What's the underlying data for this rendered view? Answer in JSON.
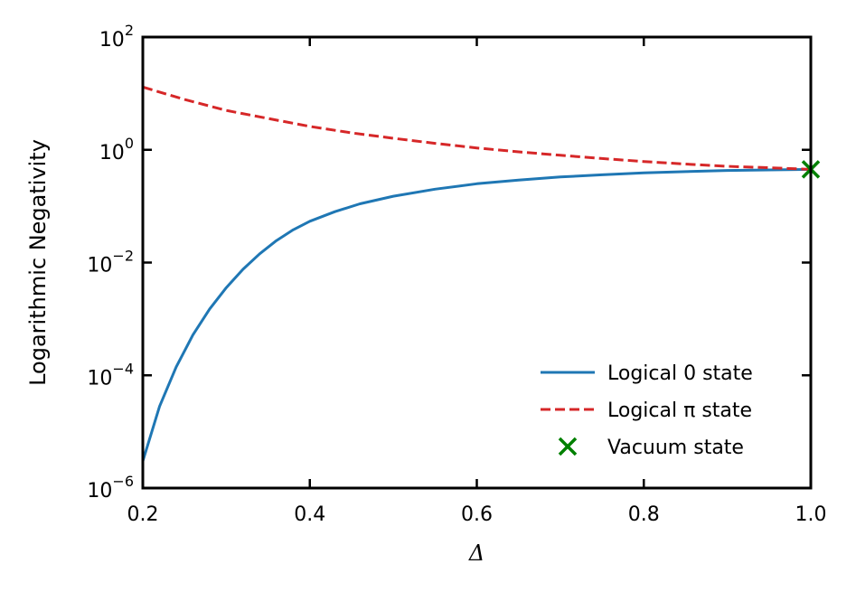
{
  "chart_data": {
    "type": "line",
    "title": "",
    "xlabel": "Δ",
    "ylabel": "Logarithmic Negativity",
    "xlim": [
      0.2,
      1.0
    ],
    "ylim": [
      1e-06,
      100
    ],
    "yscale": "log",
    "grid": false,
    "legend_position": "lower-right",
    "x_ticks": [
      0.2,
      0.4,
      0.6,
      0.8,
      1.0
    ],
    "x_tick_labels": [
      "0.2",
      "0.4",
      "0.6",
      "0.8",
      "1.0"
    ],
    "y_ticks": [
      1e-06,
      0.0001,
      0.01,
      1,
      100
    ],
    "y_tick_labels": [
      {
        "base": "10",
        "exp": "−6"
      },
      {
        "base": "10",
        "exp": "−4"
      },
      {
        "base": "10",
        "exp": "−2"
      },
      {
        "base": "10",
        "exp": "0"
      },
      {
        "base": "10",
        "exp": "2"
      }
    ],
    "series": [
      {
        "name": "Logical 0 state",
        "color": "#1f77b4",
        "style": "solid",
        "x": [
          0.2,
          0.22,
          0.24,
          0.26,
          0.28,
          0.3,
          0.32,
          0.34,
          0.36,
          0.38,
          0.4,
          0.43,
          0.46,
          0.5,
          0.55,
          0.6,
          0.65,
          0.7,
          0.75,
          0.8,
          0.85,
          0.9,
          0.95,
          1.0
        ],
        "y": [
          3e-06,
          2.8e-05,
          0.00014,
          0.00052,
          0.0015,
          0.0036,
          0.0076,
          0.0143,
          0.0245,
          0.038,
          0.054,
          0.08,
          0.11,
          0.15,
          0.2,
          0.25,
          0.29,
          0.33,
          0.36,
          0.39,
          0.41,
          0.43,
          0.44,
          0.45
        ]
      },
      {
        "name": "Logical π state",
        "color": "#d62728",
        "style": "dashed",
        "x": [
          0.2,
          0.25,
          0.3,
          0.35,
          0.4,
          0.45,
          0.5,
          0.55,
          0.6,
          0.65,
          0.7,
          0.75,
          0.8,
          0.85,
          0.9,
          0.95,
          1.0
        ],
        "y": [
          13,
          7.8,
          5,
          3.6,
          2.6,
          2.0,
          1.6,
          1.3,
          1.08,
          0.92,
          0.8,
          0.7,
          0.62,
          0.56,
          0.51,
          0.48,
          0.45
        ]
      }
    ],
    "markers": [
      {
        "name": "Vacuum state",
        "color": "#008000",
        "symbol": "x",
        "x": 1.0,
        "y": 0.45
      }
    ]
  }
}
